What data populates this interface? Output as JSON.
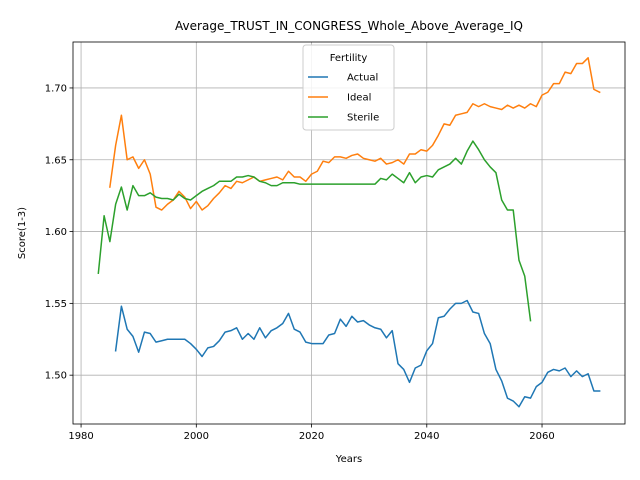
{
  "chart_data": {
    "type": "line",
    "title": "Average_TRUST_IN_CONGRESS_Whole_Above_Average_IQ",
    "xlabel": "Years",
    "ylabel": "Score(1-3)",
    "xlim": [
      1978.6,
      2074.4
    ],
    "ylim": [
      1.466,
      1.732
    ],
    "xticks": [
      1980,
      2000,
      2020,
      2040,
      2060
    ],
    "yticks": [
      1.5,
      1.55,
      1.6,
      1.65,
      1.7
    ],
    "ytick_labels": [
      "1.50",
      "1.55",
      "1.60",
      "1.65",
      "1.70"
    ],
    "grid": true,
    "legend": {
      "title": "Fertility",
      "placement": "top-center"
    },
    "series": [
      {
        "name": "Actual",
        "color": "#1f77b4",
        "x": [
          1986,
          1987,
          1988,
          1989,
          1990,
          1991,
          1992,
          1993,
          1994,
          1995,
          1996,
          1997,
          1998,
          1999,
          2000,
          2001,
          2002,
          2003,
          2004,
          2005,
          2006,
          2007,
          2008,
          2009,
          2010,
          2011,
          2012,
          2013,
          2014,
          2015,
          2016,
          2017,
          2018,
          2019,
          2020,
          2021,
          2022,
          2023,
          2024,
          2025,
          2026,
          2027,
          2028,
          2029,
          2030,
          2031,
          2032,
          2033,
          2034,
          2035,
          2036,
          2037,
          2038,
          2039,
          2040,
          2041,
          2042,
          2043,
          2044,
          2045,
          2046,
          2047,
          2048,
          2049,
          2050,
          2051,
          2052,
          2053,
          2054,
          2055,
          2056,
          2057,
          2058,
          2059,
          2060,
          2061,
          2062,
          2063,
          2064,
          2065,
          2066,
          2067,
          2068,
          2069,
          2070
        ],
        "y": [
          1.517,
          1.548,
          1.532,
          1.527,
          1.516,
          1.53,
          1.529,
          1.523,
          1.524,
          1.525,
          1.525,
          1.525,
          1.525,
          1.522,
          1.518,
          1.513,
          1.519,
          1.52,
          1.524,
          1.53,
          1.531,
          1.533,
          1.525,
          1.529,
          1.525,
          1.533,
          1.526,
          1.531,
          1.533,
          1.536,
          1.543,
          1.532,
          1.53,
          1.523,
          1.522,
          1.522,
          1.522,
          1.528,
          1.529,
          1.539,
          1.534,
          1.541,
          1.537,
          1.538,
          1.535,
          1.533,
          1.532,
          1.526,
          1.531,
          1.508,
          1.504,
          1.495,
          1.505,
          1.507,
          1.517,
          1.522,
          1.54,
          1.541,
          1.546,
          1.55,
          1.55,
          1.552,
          1.544,
          1.543,
          1.529,
          1.522,
          1.504,
          1.496,
          1.484,
          1.482,
          1.478,
          1.485,
          1.484,
          1.492,
          1.495,
          1.502,
          1.504,
          1.503,
          1.505,
          1.499,
          1.503,
          1.499,
          1.501,
          1.489,
          1.489
        ]
      },
      {
        "name": "Ideal",
        "color": "#ff7f0e",
        "x": [
          1985,
          1986,
          1987,
          1988,
          1989,
          1990,
          1991,
          1992,
          1993,
          1994,
          1995,
          1996,
          1997,
          1998,
          1999,
          2000,
          2001,
          2002,
          2003,
          2004,
          2005,
          2006,
          2007,
          2008,
          2009,
          2010,
          2011,
          2012,
          2013,
          2014,
          2015,
          2016,
          2017,
          2018,
          2019,
          2020,
          2021,
          2022,
          2023,
          2024,
          2025,
          2026,
          2027,
          2028,
          2029,
          2030,
          2031,
          2032,
          2033,
          2034,
          2035,
          2036,
          2037,
          2038,
          2039,
          2040,
          2041,
          2042,
          2043,
          2044,
          2045,
          2046,
          2047,
          2048,
          2049,
          2050,
          2051,
          2052,
          2053,
          2054,
          2055,
          2056,
          2057,
          2058,
          2059,
          2060,
          2061,
          2062,
          2063,
          2064,
          2065,
          2066,
          2067,
          2068,
          2069,
          2070
        ],
        "y": [
          1.631,
          1.66,
          1.681,
          1.65,
          1.652,
          1.644,
          1.65,
          1.64,
          1.617,
          1.615,
          1.619,
          1.622,
          1.628,
          1.624,
          1.616,
          1.621,
          1.615,
          1.618,
          1.623,
          1.627,
          1.632,
          1.63,
          1.635,
          1.634,
          1.636,
          1.638,
          1.635,
          1.636,
          1.637,
          1.638,
          1.636,
          1.642,
          1.638,
          1.638,
          1.635,
          1.64,
          1.642,
          1.649,
          1.648,
          1.652,
          1.652,
          1.651,
          1.653,
          1.654,
          1.651,
          1.65,
          1.649,
          1.651,
          1.647,
          1.648,
          1.65,
          1.647,
          1.654,
          1.654,
          1.657,
          1.656,
          1.66,
          1.667,
          1.675,
          1.674,
          1.681,
          1.682,
          1.683,
          1.689,
          1.687,
          1.689,
          1.687,
          1.686,
          1.685,
          1.688,
          1.686,
          1.688,
          1.686,
          1.689,
          1.687,
          1.695,
          1.697,
          1.703,
          1.703,
          1.711,
          1.71,
          1.717,
          1.717,
          1.721,
          1.699,
          1.697
        ]
      },
      {
        "name": "Sterile",
        "color": "#2ca02c",
        "x": [
          1983,
          1984,
          1985,
          1986,
          1987,
          1988,
          1989,
          1990,
          1991,
          1992,
          1993,
          1994,
          1995,
          1996,
          1997,
          1998,
          1999,
          2000,
          2001,
          2002,
          2003,
          2004,
          2005,
          2006,
          2007,
          2008,
          2009,
          2010,
          2011,
          2012,
          2013,
          2014,
          2015,
          2016,
          2017,
          2018,
          2019,
          2020,
          2021,
          2022,
          2023,
          2024,
          2025,
          2026,
          2027,
          2028,
          2029,
          2030,
          2031,
          2032,
          2033,
          2034,
          2035,
          2036,
          2037,
          2038,
          2039,
          2040,
          2041,
          2042,
          2043,
          2044,
          2045,
          2046,
          2047,
          2048,
          2049,
          2050,
          2051,
          2052,
          2053,
          2054,
          2055,
          2056,
          2057,
          2058
        ],
        "y": [
          1.571,
          1.611,
          1.593,
          1.619,
          1.631,
          1.615,
          1.632,
          1.625,
          1.625,
          1.627,
          1.624,
          1.623,
          1.623,
          1.622,
          1.626,
          1.623,
          1.622,
          1.625,
          1.628,
          1.63,
          1.632,
          1.635,
          1.635,
          1.635,
          1.638,
          1.638,
          1.639,
          1.638,
          1.635,
          1.634,
          1.632,
          1.632,
          1.634,
          1.634,
          1.634,
          1.633,
          1.633,
          1.633,
          1.633,
          1.633,
          1.633,
          1.633,
          1.633,
          1.633,
          1.633,
          1.633,
          1.633,
          1.633,
          1.633,
          1.637,
          1.636,
          1.64,
          1.637,
          1.634,
          1.641,
          1.634,
          1.638,
          1.639,
          1.638,
          1.643,
          1.645,
          1.647,
          1.651,
          1.647,
          1.656,
          1.663,
          1.657,
          1.65,
          1.645,
          1.641,
          1.622,
          1.615,
          1.615,
          1.58,
          1.569,
          1.538
        ]
      }
    ]
  }
}
